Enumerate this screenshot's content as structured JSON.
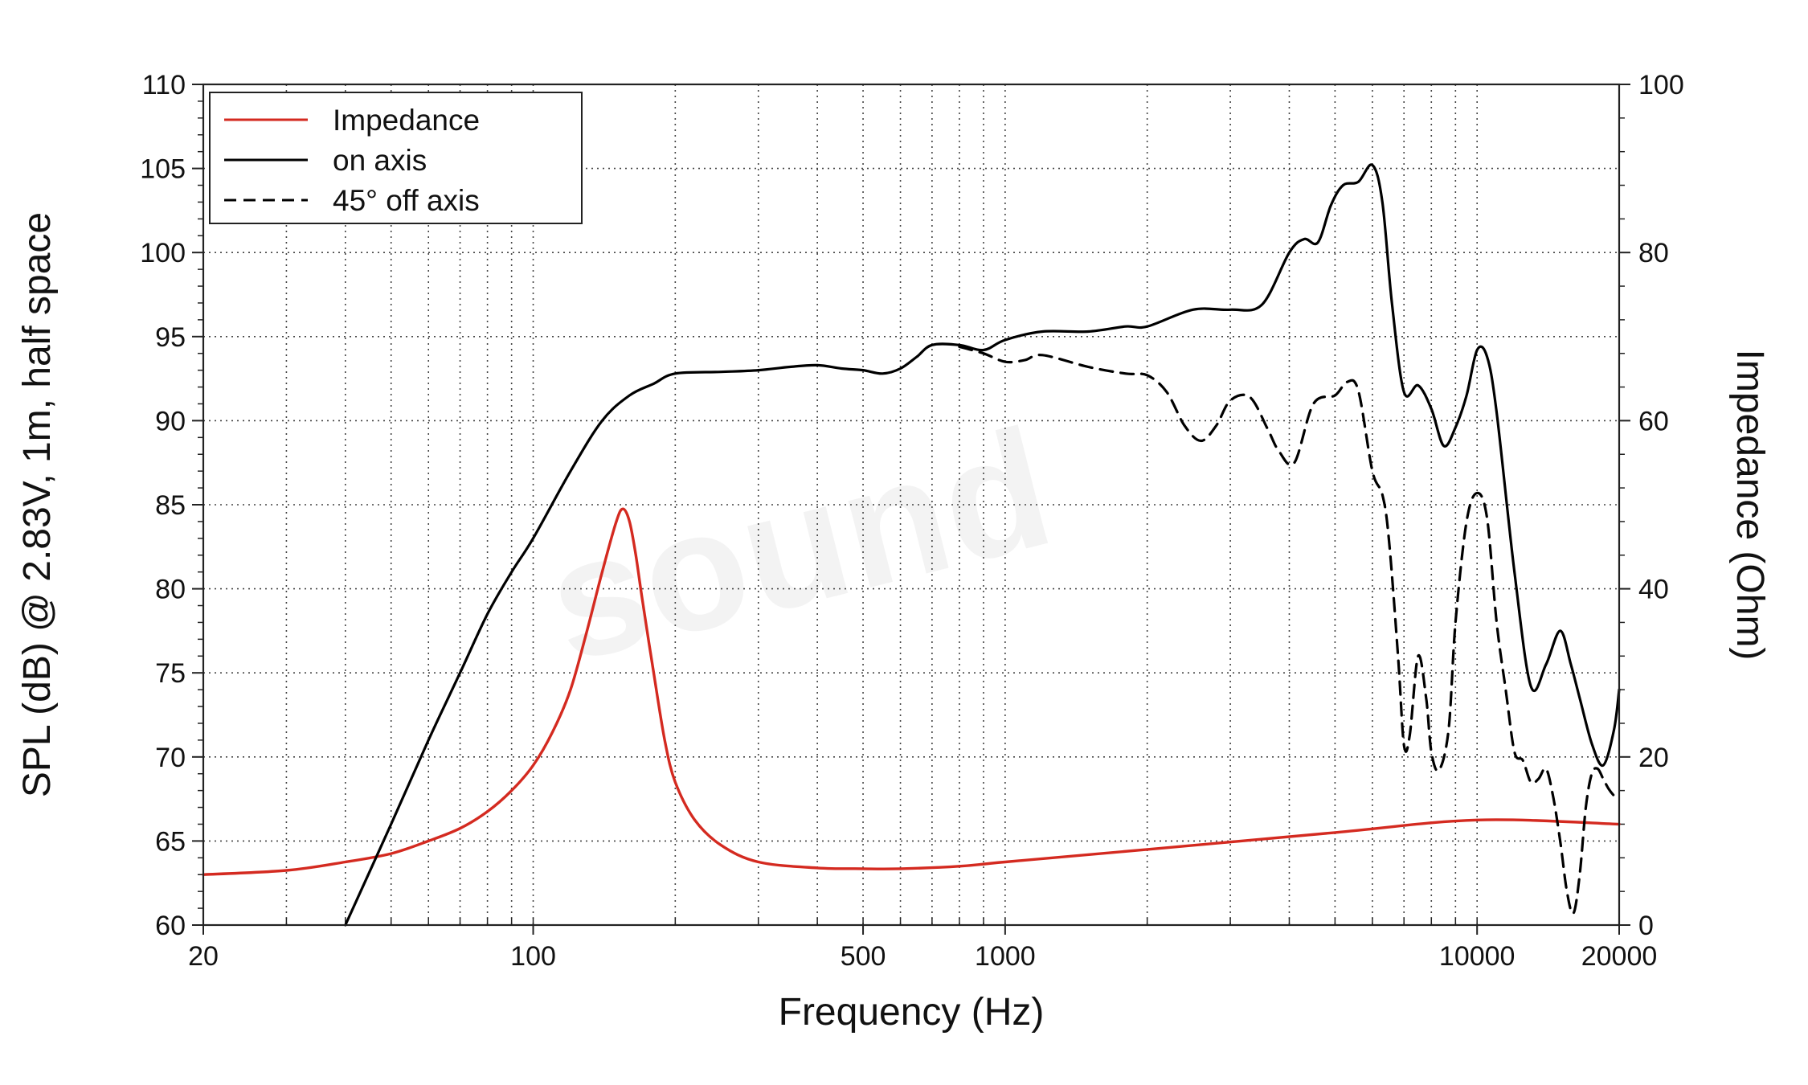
{
  "chart_data": {
    "type": "line",
    "xlabel": "Frequency (Hz)",
    "ylabel": "SPL (dB) @ 2.83V, 1m, half space",
    "y2label": "Impedance (Ohm)",
    "xscale": "log",
    "xlim": [
      20,
      20000
    ],
    "ylim": [
      60,
      110
    ],
    "y2lim": [
      0,
      100
    ],
    "x_ticks": [
      20,
      100,
      500,
      1000,
      10000,
      20000
    ],
    "x_tick_labels": [
      "20",
      "100",
      "500",
      "1000",
      "10000",
      "20000"
    ],
    "y_ticks": [
      60,
      65,
      70,
      75,
      80,
      85,
      90,
      95,
      100,
      105,
      110
    ],
    "y_tick_labels": [
      "60",
      "65",
      "70",
      "75",
      "80",
      "85",
      "90",
      "95",
      "100",
      "105",
      "110"
    ],
    "y2_ticks": [
      0,
      20,
      40,
      60,
      80,
      100
    ],
    "y2_tick_labels": [
      "0",
      "20",
      "40",
      "60",
      "80",
      "100"
    ],
    "grid": true,
    "legend_position": "top-left",
    "watermark": "sound",
    "colors": {
      "impedance": "#d42a20",
      "on_axis": "#000000",
      "off_axis": "#000000"
    },
    "series": [
      {
        "name": "Impedance",
        "axis": "right",
        "color": "#d42a20",
        "style": "solid",
        "x": [
          20,
          30,
          40,
          50,
          60,
          70,
          80,
          90,
          100,
          110,
          120,
          130,
          140,
          150,
          155,
          160,
          165,
          170,
          180,
          190,
          200,
          220,
          250,
          300,
          400,
          500,
          600,
          800,
          1000,
          2000,
          5000,
          10000,
          20000
        ],
        "y": [
          6,
          6.5,
          7.5,
          8.5,
          10,
          11.5,
          13.5,
          16,
          19,
          23,
          28,
          35,
          42,
          48,
          49.5,
          48,
          44,
          39,
          30,
          22,
          17,
          12.5,
          9.5,
          7.5,
          6.8,
          6.7,
          6.7,
          7,
          7.5,
          9,
          11,
          12.5,
          12
        ]
      },
      {
        "name": "on axis",
        "axis": "left",
        "color": "#000000",
        "style": "solid",
        "x": [
          40,
          50,
          60,
          70,
          80,
          90,
          100,
          120,
          140,
          160,
          180,
          200,
          250,
          300,
          350,
          400,
          450,
          500,
          550,
          600,
          650,
          700,
          800,
          900,
          1000,
          1200,
          1500,
          1800,
          2000,
          2500,
          3000,
          3500,
          4000,
          4300,
          4600,
          4900,
          5200,
          5600,
          6000,
          6300,
          6600,
          7000,
          7500,
          8000,
          8500,
          9000,
          9500,
          10000,
          10500,
          11000,
          12000,
          13000,
          14000,
          15000,
          15800,
          16500,
          17500,
          18500,
          19500,
          20000
        ],
        "y": [
          60,
          66,
          71,
          75,
          78.5,
          81,
          83,
          87,
          90,
          91.5,
          92.2,
          92.8,
          92.9,
          93,
          93.2,
          93.3,
          93.1,
          93,
          92.8,
          93.1,
          93.8,
          94.5,
          94.5,
          94.2,
          94.8,
          95.3,
          95.3,
          95.6,
          95.6,
          96.6,
          96.6,
          96.9,
          100,
          100.8,
          100.6,
          102.8,
          104,
          104.2,
          105.2,
          103,
          97,
          91.7,
          92.1,
          90.7,
          88.5,
          89.6,
          91.5,
          94.2,
          93.8,
          90.5,
          81,
          74.2,
          75.5,
          77.5,
          75.5,
          73.5,
          70.8,
          69.5,
          71.6,
          74
        ]
      },
      {
        "name": "45° off axis",
        "axis": "left",
        "color": "#000000",
        "style": "dashed",
        "x": [
          800,
          900,
          1000,
          1100,
          1200,
          1500,
          1800,
          2000,
          2200,
          2400,
          2600,
          2800,
          3000,
          3300,
          3600,
          3800,
          4100,
          4500,
          5000,
          5300,
          5600,
          6000,
          6300,
          6500,
          6800,
          7000,
          7200,
          7500,
          7800,
          8000,
          8300,
          8700,
          9000,
          9500,
          10000,
          10500,
          11000,
          11500,
          12000,
          12500,
          13000,
          13500,
          14000,
          14500,
          15000,
          15500,
          16000,
          16500,
          17000,
          17500,
          18000,
          18500,
          19000,
          19500,
          20000
        ],
        "y": [
          94.4,
          94,
          93.5,
          93.6,
          93.9,
          93.2,
          92.8,
          92.7,
          91.7,
          89.7,
          88.8,
          89.7,
          91.2,
          91.4,
          89.5,
          88.2,
          87.5,
          91,
          91.5,
          92.3,
          91.8,
          87,
          85.6,
          83,
          76,
          70.7,
          71.3,
          76,
          73.5,
          70.3,
          69.2,
          71.6,
          78,
          84,
          85.7,
          84.2,
          78,
          74,
          70.3,
          69.8,
          68.5,
          68.7,
          69.3,
          67.6,
          65,
          62,
          60.7,
          63,
          67,
          69,
          69.3,
          68.7,
          68.1,
          67.7,
          67.5
        ]
      }
    ]
  }
}
